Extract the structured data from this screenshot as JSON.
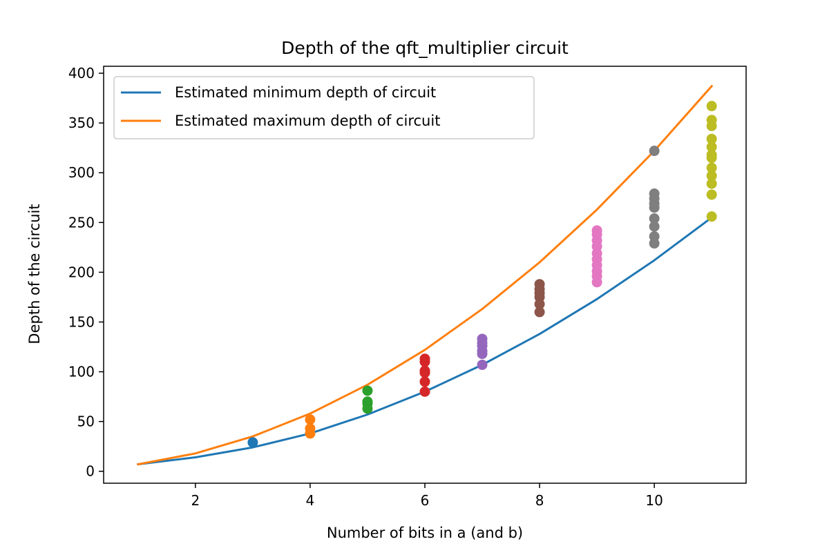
{
  "chart_data": {
    "type": "scatter",
    "title": "Depth of the qft_multiplier circuit",
    "xlabel": "Number of bits in a (and b)",
    "ylabel": "Depth of the circuit",
    "xlim": [
      0.4,
      11.6
    ],
    "ylim": [
      -12,
      407
    ],
    "xticks": [
      2,
      4,
      6,
      8,
      10
    ],
    "yticks": [
      0,
      50,
      100,
      150,
      200,
      250,
      300,
      350,
      400
    ],
    "grid": false,
    "legend_position": "top-left",
    "lines": [
      {
        "name": "Estimated minimum depth of circuit",
        "color": "#1f77b4",
        "x": [
          1,
          2,
          3,
          4,
          5,
          6,
          7,
          8,
          9,
          10,
          11
        ],
        "y": [
          7,
          14,
          24,
          38,
          57,
          80,
          107,
          138,
          173,
          212,
          255
        ]
      },
      {
        "name": "Estimated maximum depth of circuit",
        "color": "#ff7f0e",
        "x": [
          1,
          2,
          3,
          4,
          5,
          6,
          7,
          8,
          9,
          10,
          11
        ],
        "y": [
          7,
          18,
          35,
          58,
          87,
          122,
          163,
          210,
          263,
          322,
          387
        ]
      }
    ],
    "scatter_groups": [
      {
        "x": 3,
        "color": "#1f77b4",
        "y": [
          29
        ]
      },
      {
        "x": 4,
        "color": "#ff7f0e",
        "y": [
          38,
          43,
          52
        ]
      },
      {
        "x": 5,
        "color": "#2ca02c",
        "y": [
          63,
          68,
          70,
          81
        ]
      },
      {
        "x": 6,
        "color": "#d62728",
        "y": [
          80,
          90,
          99,
          101,
          110,
          113
        ]
      },
      {
        "x": 7,
        "color": "#9467bd",
        "y": [
          107,
          118,
          121,
          126,
          129,
          133
        ]
      },
      {
        "x": 8,
        "color": "#8c564b",
        "y": [
          160,
          168,
          175,
          179,
          183,
          188
        ]
      },
      {
        "x": 9,
        "color": "#e377c2",
        "y": [
          190,
          196,
          201,
          207,
          213,
          219,
          226,
          232,
          238,
          242
        ]
      },
      {
        "x": 10,
        "color": "#7f7f7f",
        "y": [
          229,
          236,
          246,
          254,
          265,
          269,
          274,
          279,
          322
        ]
      },
      {
        "x": 11,
        "color": "#bcbd22",
        "y": [
          256,
          278,
          289,
          297,
          305,
          315,
          318,
          326,
          334,
          347,
          353,
          367
        ]
      }
    ]
  }
}
